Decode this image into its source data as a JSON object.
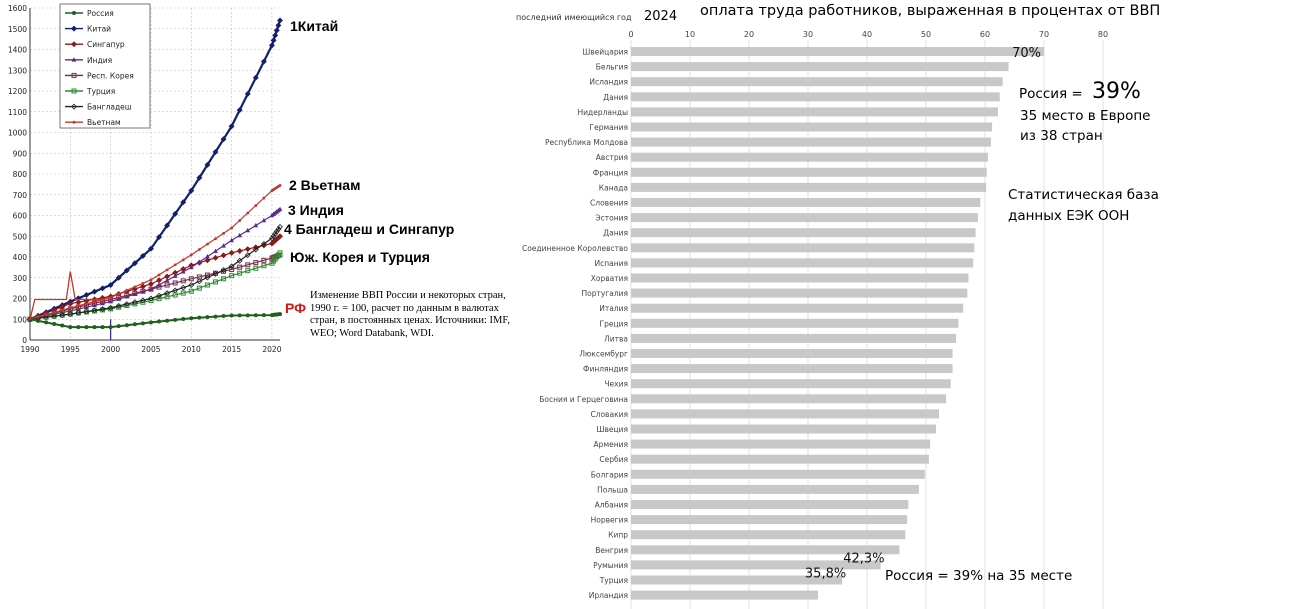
{
  "chart_data": [
    {
      "type": "line",
      "ylim": [
        0,
        1600
      ],
      "xlim": [
        1990,
        2021
      ],
      "yticks": [
        0,
        100,
        200,
        300,
        400,
        500,
        600,
        700,
        800,
        900,
        1000,
        1100,
        1200,
        1300,
        1400,
        1500,
        1600
      ],
      "xticks": [
        1990,
        1995,
        2000,
        2005,
        2010,
        2015,
        2020
      ],
      "x": [
        1990,
        1995,
        2000,
        2005,
        2010,
        2015,
        2020,
        2021
      ],
      "legend_position": "top-left",
      "series": [
        {
          "name": "Россия",
          "color": "#1f5f1f",
          "values": [
            100,
            62,
            62,
            85,
            105,
            118,
            120,
            125
          ]
        },
        {
          "name": "Китай",
          "color": "#10206a",
          "values": [
            100,
            185,
            265,
            440,
            720,
            1030,
            1420,
            1540
          ]
        },
        {
          "name": "Сингапур",
          "color": "#8b1a1a",
          "values": [
            100,
            175,
            210,
            270,
            360,
            420,
            465,
            500
          ]
        },
        {
          "name": "Индия",
          "color": "#5a2b8a",
          "values": [
            100,
            140,
            185,
            245,
            350,
            480,
            600,
            630
          ]
        },
        {
          "name": "Респ. Корея",
          "color": "#7a2b4a",
          "values": [
            100,
            150,
            195,
            245,
            295,
            340,
            395,
            410
          ]
        },
        {
          "name": "Турция",
          "color": "#2e8b2e",
          "values": [
            100,
            125,
            150,
            190,
            235,
            310,
            370,
            420
          ]
        },
        {
          "name": "Бангладеш",
          "color": "#222222",
          "values": [
            100,
            125,
            155,
            200,
            265,
            355,
            490,
            545
          ]
        },
        {
          "name": "Вьетнам",
          "color": "#c0392b",
          "values": [
            100,
            155,
            205,
            290,
            410,
            540,
            720,
            745
          ]
        }
      ],
      "russia_early_values": [
        100,
        195,
        195,
        195,
        195,
        330,
        195,
        195,
        195
      ],
      "russia_early_x": [
        1990,
        1990.6,
        1991.5,
        1993,
        1994.5,
        1995,
        1995.6,
        1997,
        1999
      ],
      "annotations": [
        "1Китай",
        "2 Вьетнам",
        "3 Индия",
        "4 Бангладеш и Сингапур",
        "Юж. Корея и Турция",
        "РФ"
      ],
      "source_note": "Изменение ВВП России и некоторых стран, 1990 г. = 100, расчет по данным в валютах стран, в постоянных ценах. Источники: IMF, WEO; Word Databank, WDI."
    },
    {
      "type": "bar",
      "orientation": "horizontal",
      "title": "оплата труда работников, выраженная в процентах от ВВП",
      "year_label": "последний имеющийся год",
      "year_value": "2024",
      "xlim": [
        0,
        80
      ],
      "xticks": [
        0,
        10,
        20,
        30,
        40,
        50,
        60,
        70,
        80
      ],
      "bar_color": "#c8c8c8",
      "categories": [
        "Швейцария",
        "Бельгия",
        "Исландия",
        "Дания",
        "Нидерланды",
        "Германия",
        "Республика Молдова",
        "Австрия",
        "Франция",
        "Канада",
        "Словения",
        "Эстония",
        "Дания",
        "Соединенное Королевство",
        "Испания",
        "Хорватия",
        "Португалия",
        "Италия",
        "Греция",
        "Литва",
        "Люксембург",
        "Финляндия",
        "Чехия",
        "Босния и Герцеговина",
        "Словакия",
        "Швеция",
        "Армения",
        "Сербия",
        "Болгария",
        "Польша",
        "Албания",
        "Норвегия",
        "Кипр",
        "Венгрия",
        "Румыния",
        "Турция",
        "Ирландия"
      ],
      "values": [
        70,
        64,
        63,
        62.5,
        62.2,
        61.2,
        61,
        60.5,
        60.3,
        60.2,
        59.2,
        58.8,
        58.4,
        58.2,
        58,
        57.2,
        57,
        56.3,
        55.5,
        55.1,
        54.5,
        54.5,
        54.2,
        53.4,
        52.2,
        51.7,
        50.7,
        50.5,
        49.8,
        48.8,
        47,
        46.8,
        46.5,
        45.5,
        42.3,
        35.8,
        31.7
      ],
      "data_labels": {
        "Швейцария": "70%",
        "Румыния": "42,3%",
        "Турция": "35,8%"
      }
    }
  ],
  "notes": {
    "russia_label": "Россия =",
    "russia_value": "39%",
    "rank_line1": "35 место в Европе",
    "rank_line2": "из 38 стран",
    "source_line1": "Статистическая база",
    "source_line2": "данных ЕЭК ООН",
    "russia_bottom": "Россия = 39% на 35 месте"
  }
}
